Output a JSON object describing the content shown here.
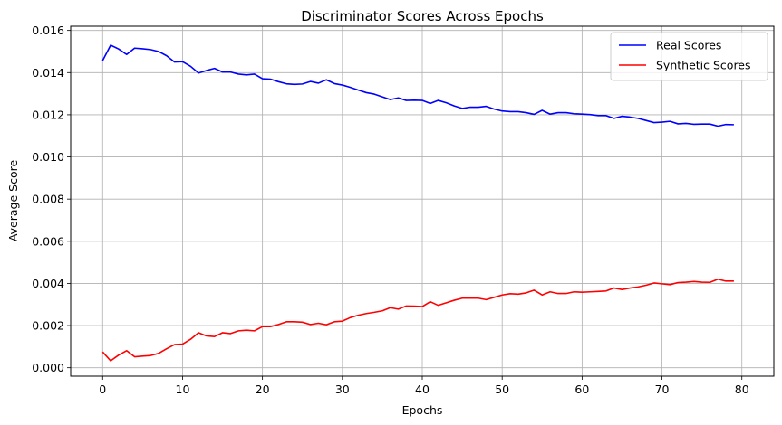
{
  "chart_data": {
    "type": "line",
    "title": "Discriminator Scores Across Epochs",
    "xlabel": "Epochs",
    "ylabel": "Average Score",
    "xlim": [
      -4,
      84
    ],
    "ylim": [
      -0.0004,
      0.0162
    ],
    "xticks": [
      0,
      10,
      20,
      30,
      40,
      50,
      60,
      70,
      80
    ],
    "yticks": [
      0.0,
      0.002,
      0.004,
      0.006,
      0.008,
      0.01,
      0.012,
      0.014,
      0.016
    ],
    "ytick_labels": [
      "0.000",
      "0.002",
      "0.004",
      "0.006",
      "0.008",
      "0.010",
      "0.012",
      "0.014",
      "0.016"
    ],
    "grid": true,
    "legend_position": "top-right",
    "x": [
      0,
      1,
      2,
      3,
      4,
      5,
      6,
      7,
      8,
      9,
      10,
      11,
      12,
      13,
      14,
      15,
      16,
      17,
      18,
      19,
      20,
      21,
      22,
      23,
      24,
      25,
      26,
      27,
      28,
      29,
      30,
      31,
      32,
      33,
      34,
      35,
      36,
      37,
      38,
      39,
      40,
      41,
      42,
      43,
      44,
      45,
      46,
      47,
      48,
      49,
      50,
      51,
      52,
      53,
      54,
      55,
      56,
      57,
      58,
      59,
      60,
      61,
      62,
      63,
      64,
      65,
      66,
      67,
      68,
      69,
      70,
      71,
      72,
      73,
      74,
      75,
      76,
      77,
      78,
      79
    ],
    "series": [
      {
        "name": "Real Scores",
        "color": "#0000ff",
        "values": [
          0.01457,
          0.0153,
          0.01512,
          0.01486,
          0.01516,
          0.01513,
          0.01509,
          0.015,
          0.0148,
          0.0145,
          0.01452,
          0.0143,
          0.01398,
          0.0141,
          0.0142,
          0.01403,
          0.01403,
          0.01393,
          0.01389,
          0.01393,
          0.01371,
          0.01369,
          0.01357,
          0.01347,
          0.01344,
          0.01346,
          0.01358,
          0.0135,
          0.01366,
          0.01348,
          0.01341,
          0.0133,
          0.01317,
          0.01305,
          0.01298,
          0.01285,
          0.01272,
          0.0128,
          0.01268,
          0.01269,
          0.01268,
          0.01254,
          0.01268,
          0.01257,
          0.01242,
          0.0123,
          0.01236,
          0.01236,
          0.0124,
          0.01227,
          0.01218,
          0.01215,
          0.01215,
          0.0121,
          0.01202,
          0.01221,
          0.01203,
          0.0121,
          0.0121,
          0.01205,
          0.01203,
          0.01201,
          0.01196,
          0.01196,
          0.01183,
          0.01193,
          0.01189,
          0.01183,
          0.01173,
          0.01163,
          0.01165,
          0.01169,
          0.01157,
          0.01159,
          0.01155,
          0.01156,
          0.01156,
          0.01146,
          0.01154,
          0.01153
        ]
      },
      {
        "name": "Synthetic Scores",
        "color": "#ff0000",
        "values": [
          0.00075,
          0.00033,
          0.0006,
          0.00081,
          0.00052,
          0.00055,
          0.00058,
          0.00068,
          0.0009,
          0.0011,
          0.00112,
          0.00135,
          0.00166,
          0.00151,
          0.00148,
          0.00166,
          0.00162,
          0.00175,
          0.00178,
          0.00175,
          0.00195,
          0.00195,
          0.00205,
          0.00218,
          0.00218,
          0.00216,
          0.00205,
          0.00211,
          0.00204,
          0.00218,
          0.00221,
          0.00238,
          0.00249,
          0.00257,
          0.00263,
          0.0027,
          0.00285,
          0.00278,
          0.00293,
          0.00292,
          0.0029,
          0.00313,
          0.00296,
          0.00308,
          0.0032,
          0.0033,
          0.0033,
          0.0033,
          0.00323,
          0.00334,
          0.00345,
          0.00351,
          0.00349,
          0.00355,
          0.00368,
          0.00345,
          0.0036,
          0.00352,
          0.00352,
          0.0036,
          0.00358,
          0.0036,
          0.00362,
          0.00364,
          0.00378,
          0.00371,
          0.00378,
          0.00383,
          0.00391,
          0.00402,
          0.00398,
          0.00394,
          0.00404,
          0.00406,
          0.00409,
          0.00406,
          0.00405,
          0.0042,
          0.00411,
          0.00411
        ]
      }
    ]
  }
}
